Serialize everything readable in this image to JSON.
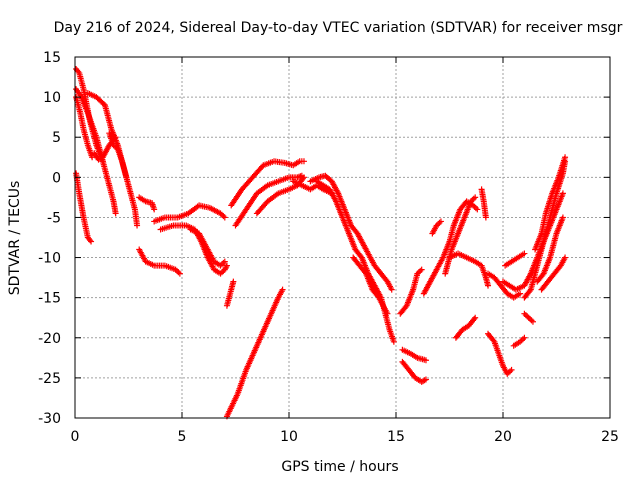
{
  "chart_data": {
    "type": "scatter",
    "title": "Day 216 of 2024, Sidereal Day-to-day VTEC variation (SDTVAR) for receiver msgr",
    "xlabel": "GPS time / hours",
    "ylabel": "SDTVAR / TECUs",
    "xlim": [
      0,
      25
    ],
    "ylim": [
      -30,
      15
    ],
    "xticks": [
      0,
      5,
      10,
      15,
      20,
      25
    ],
    "yticks": [
      -30,
      -25,
      -20,
      -15,
      -10,
      -5,
      0,
      5,
      10,
      15
    ],
    "grid": true,
    "marker": "+",
    "color": "#ff0000",
    "series": [
      {
        "name": "s1",
        "points": [
          [
            0.05,
            13.5
          ],
          [
            0.2,
            13
          ],
          [
            0.4,
            11
          ],
          [
            0.7,
            7
          ],
          [
            1.0,
            4
          ],
          [
            1.3,
            2
          ]
        ]
      },
      {
        "name": "s2",
        "points": [
          [
            0.05,
            11
          ],
          [
            0.3,
            10
          ],
          [
            0.6,
            8
          ],
          [
            1.0,
            5
          ],
          [
            1.3,
            2
          ],
          [
            1.6,
            -1
          ],
          [
            1.8,
            -3
          ],
          [
            1.9,
            -4.5
          ]
        ]
      },
      {
        "name": "s3",
        "points": [
          [
            0.05,
            10
          ],
          [
            0.25,
            8
          ],
          [
            0.4,
            6
          ],
          [
            0.6,
            4
          ],
          [
            0.8,
            2.5
          ]
        ]
      },
      {
        "name": "s4",
        "points": [
          [
            0.05,
            0.5
          ],
          [
            0.2,
            -2
          ],
          [
            0.4,
            -5
          ],
          [
            0.6,
            -7.5
          ],
          [
            0.75,
            -8
          ]
        ]
      },
      {
        "name": "s5",
        "points": [
          [
            0.6,
            10.5
          ],
          [
            1.0,
            10
          ],
          [
            1.4,
            9
          ],
          [
            1.7,
            6
          ],
          [
            2.0,
            4
          ],
          [
            2.3,
            1
          ],
          [
            2.6,
            -2
          ],
          [
            2.8,
            -4
          ],
          [
            2.9,
            -6
          ]
        ]
      },
      {
        "name": "s6",
        "points": [
          [
            1.6,
            5.5
          ],
          [
            1.8,
            4
          ],
          [
            2.0,
            3.5
          ],
          [
            2.2,
            2
          ],
          [
            2.4,
            0
          ]
        ]
      },
      {
        "name": "s7",
        "points": [
          [
            0.9,
            3
          ],
          [
            1.1,
            2.2
          ],
          [
            1.3,
            2.5
          ],
          [
            1.6,
            4
          ],
          [
            1.9,
            5
          ]
        ]
      },
      {
        "name": "s8",
        "points": [
          [
            3.0,
            -2.5
          ],
          [
            3.3,
            -3
          ],
          [
            3.6,
            -3.2
          ],
          [
            3.7,
            -4
          ]
        ]
      },
      {
        "name": "s9",
        "points": [
          [
            3.0,
            -9
          ],
          [
            3.3,
            -10.5
          ],
          [
            3.7,
            -11
          ],
          [
            4.2,
            -11
          ],
          [
            4.7,
            -11.5
          ],
          [
            4.9,
            -12
          ]
        ]
      },
      {
        "name": "s10",
        "points": [
          [
            3.7,
            -5.5
          ],
          [
            4.2,
            -5
          ],
          [
            4.8,
            -5
          ],
          [
            5.3,
            -4.5
          ],
          [
            5.8,
            -3.5
          ],
          [
            6.3,
            -3.8
          ],
          [
            6.8,
            -4.5
          ],
          [
            7.0,
            -5
          ]
        ]
      },
      {
        "name": "s11",
        "points": [
          [
            4.0,
            -6.5
          ],
          [
            4.6,
            -6
          ],
          [
            5.2,
            -6
          ],
          [
            5.6,
            -6.5
          ],
          [
            5.9,
            -8
          ],
          [
            6.2,
            -10
          ],
          [
            6.5,
            -11.5
          ],
          [
            6.8,
            -12
          ],
          [
            7.0,
            -11.5
          ],
          [
            7.1,
            -11
          ]
        ]
      },
      {
        "name": "s12",
        "points": [
          [
            5.4,
            -6.5
          ],
          [
            5.8,
            -7
          ],
          [
            6.2,
            -9
          ],
          [
            6.5,
            -10.5
          ],
          [
            6.8,
            -11
          ],
          [
            7.0,
            -10.5
          ]
        ]
      },
      {
        "name": "s13",
        "points": [
          [
            7.1,
            -16
          ],
          [
            7.3,
            -14
          ],
          [
            7.4,
            -13
          ]
        ]
      },
      {
        "name": "s14",
        "points": [
          [
            7.1,
            -29.8
          ],
          [
            7.6,
            -27
          ],
          [
            8.0,
            -24
          ],
          [
            8.5,
            -21
          ],
          [
            9.0,
            -18
          ],
          [
            9.5,
            -15
          ],
          [
            9.7,
            -14
          ]
        ]
      },
      {
        "name": "s15",
        "points": [
          [
            7.3,
            -3.5
          ],
          [
            7.8,
            -1.5
          ],
          [
            8.3,
            0
          ],
          [
            8.8,
            1.5
          ],
          [
            9.3,
            2
          ],
          [
            9.8,
            1.8
          ],
          [
            10.2,
            1.5
          ],
          [
            10.5,
            2
          ],
          [
            10.7,
            2
          ]
        ]
      },
      {
        "name": "s16",
        "points": [
          [
            7.5,
            -6
          ],
          [
            8.0,
            -4
          ],
          [
            8.5,
            -2
          ],
          [
            9.0,
            -1
          ],
          [
            9.5,
            -0.5
          ],
          [
            10.0,
            0
          ],
          [
            10.4,
            0
          ],
          [
            10.6,
            0.2
          ]
        ]
      },
      {
        "name": "s17",
        "points": [
          [
            8.5,
            -4.5
          ],
          [
            9.0,
            -3
          ],
          [
            9.5,
            -2
          ],
          [
            10.0,
            -1.5
          ],
          [
            10.4,
            -1
          ],
          [
            10.7,
            0
          ]
        ]
      },
      {
        "name": "s18",
        "points": [
          [
            10.2,
            -0.5
          ],
          [
            10.6,
            -1
          ],
          [
            11.0,
            -1.5
          ],
          [
            11.3,
            -1
          ],
          [
            11.6,
            -1.5
          ],
          [
            12.0,
            -2
          ]
        ]
      },
      {
        "name": "s19",
        "points": [
          [
            11.0,
            -0.5
          ],
          [
            11.4,
            0
          ],
          [
            11.7,
            0.2
          ],
          [
            12.0,
            -0.5
          ],
          [
            12.3,
            -2
          ],
          [
            12.6,
            -4
          ],
          [
            12.9,
            -6
          ],
          [
            13.2,
            -7
          ],
          [
            13.5,
            -8.5
          ],
          [
            13.8,
            -10
          ],
          [
            14.0,
            -11
          ],
          [
            14.3,
            -12
          ],
          [
            14.6,
            -13
          ],
          [
            14.8,
            -14
          ]
        ]
      },
      {
        "name": "s20",
        "points": [
          [
            11.3,
            -0.5
          ],
          [
            11.6,
            -1
          ],
          [
            11.9,
            -1.5
          ],
          [
            12.2,
            -3
          ],
          [
            12.5,
            -5
          ],
          [
            12.8,
            -7
          ],
          [
            13.1,
            -9
          ],
          [
            13.4,
            -10
          ],
          [
            13.7,
            -12
          ],
          [
            14.0,
            -13.5
          ],
          [
            14.3,
            -15
          ],
          [
            14.5,
            -17
          ],
          [
            14.7,
            -19
          ],
          [
            14.9,
            -20.5
          ]
        ]
      },
      {
        "name": "s21",
        "points": [
          [
            13.0,
            -10
          ],
          [
            13.3,
            -11
          ],
          [
            13.6,
            -12
          ],
          [
            13.9,
            -14
          ],
          [
            14.2,
            -15
          ],
          [
            14.4,
            -16
          ],
          [
            14.6,
            -17
          ]
        ]
      },
      {
        "name": "s22",
        "points": [
          [
            15.3,
            -21.5
          ],
          [
            15.7,
            -22
          ],
          [
            16.0,
            -22.5
          ],
          [
            16.4,
            -22.8
          ]
        ]
      },
      {
        "name": "s23",
        "points": [
          [
            15.3,
            -23
          ],
          [
            15.6,
            -24
          ],
          [
            15.9,
            -25
          ],
          [
            16.2,
            -25.5
          ],
          [
            16.4,
            -25.2
          ]
        ]
      },
      {
        "name": "s24",
        "points": [
          [
            15.2,
            -17
          ],
          [
            15.5,
            -16
          ],
          [
            15.8,
            -14
          ],
          [
            16.0,
            -12
          ],
          [
            16.2,
            -11.5
          ]
        ]
      },
      {
        "name": "s25",
        "points": [
          [
            16.3,
            -14.5
          ],
          [
            16.6,
            -13
          ],
          [
            16.9,
            -11.5
          ],
          [
            17.2,
            -10
          ],
          [
            17.5,
            -8
          ],
          [
            17.7,
            -6
          ],
          [
            18.0,
            -4
          ],
          [
            18.3,
            -3
          ],
          [
            18.6,
            -3.5
          ],
          [
            18.8,
            -4
          ]
        ]
      },
      {
        "name": "s26",
        "points": [
          [
            17.3,
            -12
          ],
          [
            17.6,
            -9
          ],
          [
            17.9,
            -7
          ],
          [
            18.2,
            -5
          ],
          [
            18.5,
            -3
          ],
          [
            18.7,
            -2.5
          ]
        ]
      },
      {
        "name": "s27",
        "points": [
          [
            16.7,
            -7
          ],
          [
            16.9,
            -6
          ],
          [
            17.1,
            -5.5
          ]
        ]
      },
      {
        "name": "s28",
        "points": [
          [
            17.5,
            -10
          ],
          [
            17.9,
            -9.5
          ],
          [
            18.3,
            -10
          ],
          [
            18.7,
            -10.5
          ],
          [
            19.0,
            -11
          ],
          [
            19.2,
            -12.5
          ],
          [
            19.3,
            -13.5
          ]
        ]
      },
      {
        "name": "s29",
        "points": [
          [
            19.3,
            -12
          ],
          [
            19.6,
            -12.5
          ],
          [
            19.9,
            -13.5
          ],
          [
            20.2,
            -14.5
          ],
          [
            20.5,
            -15
          ],
          [
            20.8,
            -14.5
          ]
        ]
      },
      {
        "name": "s30",
        "points": [
          [
            17.8,
            -20
          ],
          [
            18.1,
            -19
          ],
          [
            18.4,
            -18.5
          ],
          [
            18.7,
            -17.5
          ]
        ]
      },
      {
        "name": "s31",
        "points": [
          [
            19.3,
            -19.5
          ],
          [
            19.6,
            -20.5
          ],
          [
            19.8,
            -22
          ],
          [
            20.0,
            -23.5
          ],
          [
            20.2,
            -24.5
          ],
          [
            20.4,
            -24
          ]
        ]
      },
      {
        "name": "s32",
        "points": [
          [
            20.5,
            -21
          ],
          [
            20.8,
            -20.5
          ],
          [
            21.0,
            -20
          ]
        ]
      },
      {
        "name": "s33",
        "points": [
          [
            19.0,
            -1.5
          ],
          [
            19.1,
            -3
          ],
          [
            19.2,
            -5
          ]
        ]
      },
      {
        "name": "s34",
        "points": [
          [
            20.0,
            -13
          ],
          [
            20.3,
            -13.5
          ],
          [
            20.6,
            -14
          ],
          [
            21.0,
            -13.5
          ],
          [
            21.3,
            -12
          ],
          [
            21.6,
            -10
          ],
          [
            21.9,
            -8
          ],
          [
            22.2,
            -6
          ],
          [
            22.5,
            -4
          ],
          [
            22.8,
            -2
          ]
        ]
      },
      {
        "name": "s35",
        "points": [
          [
            21.0,
            -15
          ],
          [
            21.3,
            -14
          ],
          [
            21.6,
            -11
          ],
          [
            21.9,
            -8
          ],
          [
            22.2,
            -5
          ],
          [
            22.5,
            -2
          ],
          [
            22.8,
            0.5
          ],
          [
            22.9,
            2
          ]
        ]
      },
      {
        "name": "s36",
        "points": [
          [
            21.6,
            -13
          ],
          [
            21.9,
            -12
          ],
          [
            22.2,
            -10
          ],
          [
            22.5,
            -7
          ],
          [
            22.8,
            -5
          ]
        ]
      },
      {
        "name": "s37",
        "points": [
          [
            21.8,
            -14
          ],
          [
            22.1,
            -13
          ],
          [
            22.4,
            -12
          ],
          [
            22.7,
            -11
          ],
          [
            22.9,
            -10
          ]
        ]
      },
      {
        "name": "s38",
        "points": [
          [
            20.1,
            -11
          ],
          [
            20.4,
            -10.5
          ],
          [
            20.7,
            -10
          ],
          [
            21.0,
            -9.5
          ]
        ]
      },
      {
        "name": "s39",
        "points": [
          [
            21.0,
            -17
          ],
          [
            21.2,
            -17.5
          ],
          [
            21.4,
            -18
          ]
        ]
      },
      {
        "name": "s40",
        "points": [
          [
            21.5,
            -9
          ],
          [
            21.8,
            -7
          ],
          [
            22.0,
            -4.5
          ],
          [
            22.3,
            -2
          ],
          [
            22.6,
            0
          ],
          [
            22.9,
            2.5
          ]
        ]
      }
    ]
  }
}
